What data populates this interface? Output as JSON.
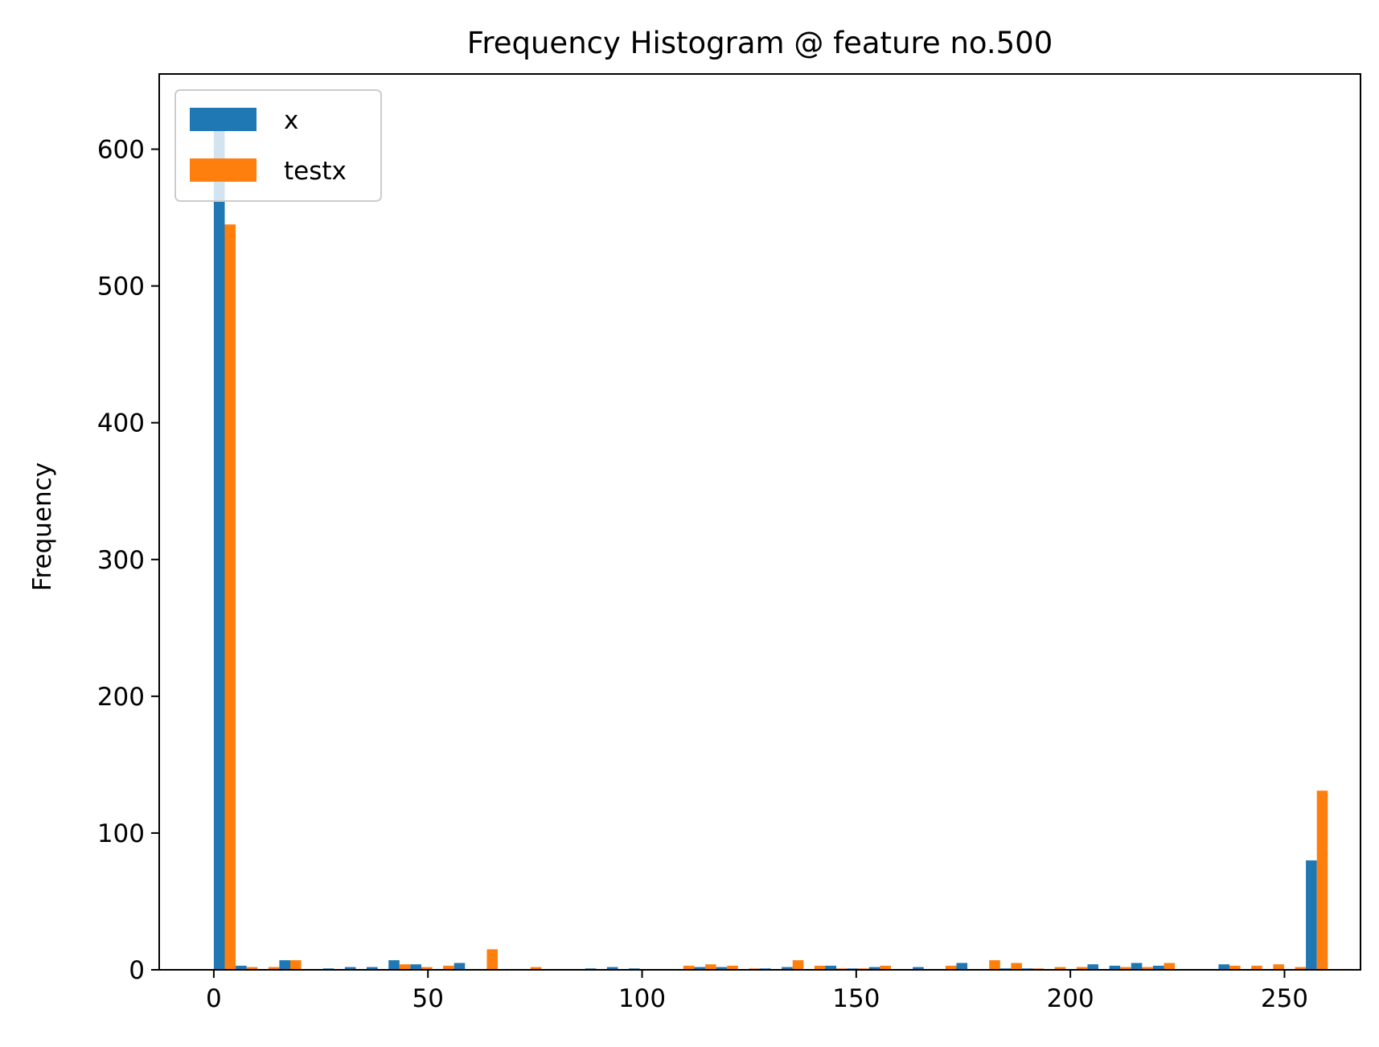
{
  "chart_data": {
    "type": "bar",
    "title": "Frequency Histogram @ feature no.500",
    "xlabel": "",
    "ylabel": "Frequency",
    "xlim": [
      -12.75,
      267.75
    ],
    "ylim": [
      0,
      655
    ],
    "xticks": [
      0,
      50,
      100,
      150,
      200,
      250
    ],
    "yticks": [
      0,
      100,
      200,
      300,
      400,
      500,
      600
    ],
    "grid": false,
    "legend_position": "top-left",
    "bin_start": 0,
    "bin_width": 5.1,
    "series": [
      {
        "name": "x",
        "color": "#1f77b4",
        "values": [
          615,
          3,
          0,
          7,
          0,
          1,
          2,
          2,
          7,
          4,
          0,
          5,
          0,
          0,
          0,
          0,
          0,
          1,
          2,
          1,
          0,
          0,
          2,
          2,
          0,
          1,
          2,
          0,
          3,
          1,
          2,
          0,
          2,
          0,
          5,
          0,
          1,
          1,
          0,
          0,
          4,
          3,
          5,
          3,
          0,
          0,
          4,
          0,
          0,
          0,
          80
        ]
      },
      {
        "name": "testx",
        "color": "#ff7f0e",
        "values": [
          545,
          2,
          2,
          7,
          0,
          0,
          0,
          0,
          4,
          2,
          3,
          0,
          15,
          0,
          2,
          0,
          0,
          0,
          0,
          0,
          0,
          3,
          4,
          3,
          1,
          0,
          7,
          3,
          1,
          1,
          3,
          0,
          0,
          3,
          0,
          7,
          5,
          1,
          2,
          2,
          0,
          2,
          2,
          5,
          0,
          0,
          3,
          3,
          4,
          2,
          131
        ]
      }
    ]
  }
}
